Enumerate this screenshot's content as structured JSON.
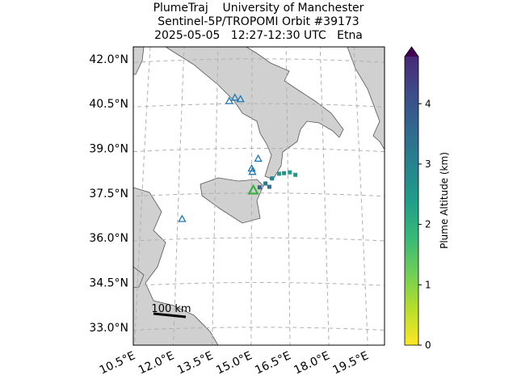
{
  "chart_data": {
    "type": "map",
    "title": [
      "PlumeTraj    University of Manchester",
      "Sentinel-5P/TROPOMI Orbit #39173",
      "2025-05-05   12:27-12:30 UTC   Etna"
    ],
    "ylim": [
      32.4,
      42.4
    ],
    "xlim": [
      10.3,
      20.3
    ],
    "yticks": [
      {
        "value": 33.0,
        "label": "33.0°N"
      },
      {
        "value": 34.5,
        "label": "34.5°N"
      },
      {
        "value": 36.0,
        "label": "36.0°N"
      },
      {
        "value": 37.5,
        "label": "37.5°N"
      },
      {
        "value": 39.0,
        "label": "39.0°N"
      },
      {
        "value": 40.5,
        "label": "40.5°N"
      },
      {
        "value": 42.0,
        "label": "42.0°N"
      }
    ],
    "xticks": [
      {
        "value": 10.5,
        "label": "10.5°E"
      },
      {
        "value": 12.0,
        "label": "12.0°E"
      },
      {
        "value": 13.5,
        "label": "13.5°E"
      },
      {
        "value": 15.0,
        "label": "15.0°E"
      },
      {
        "value": 16.5,
        "label": "16.5°E"
      },
      {
        "value": 18.0,
        "label": "18.0°E"
      },
      {
        "value": 19.5,
        "label": "19.5°E"
      }
    ],
    "grid": true,
    "volcanoes": {
      "color": "#1f77b4",
      "lon": [
        14.03,
        14.27,
        14.51,
        15.27,
        15.0,
        15.03,
        12.18
      ],
      "lat": [
        40.58,
        40.69,
        40.64,
        38.64,
        38.31,
        38.2,
        36.66
      ]
    },
    "target": {
      "color": "#3cb043",
      "lon": 15.07,
      "lat": 37.58
    },
    "plume": {
      "lon": [
        16.14,
        16.34,
        16.58,
        16.81,
        15.84,
        15.57,
        15.33,
        15.73
      ],
      "lat": [
        38.15,
        38.17,
        38.2,
        38.12,
        37.99,
        37.82,
        37.69,
        37.71
      ],
      "altitude": [
        2.2,
        2.3,
        2.1,
        2.2,
        2.6,
        2.9,
        3.2,
        3.0
      ]
    },
    "scale_label": "100 km",
    "colorbar": {
      "label": "Plume Altitude (km)",
      "cmap": "viridis",
      "clim": [
        0,
        4.78
      ],
      "ticks": [
        0,
        1,
        2,
        3,
        4
      ]
    }
  }
}
